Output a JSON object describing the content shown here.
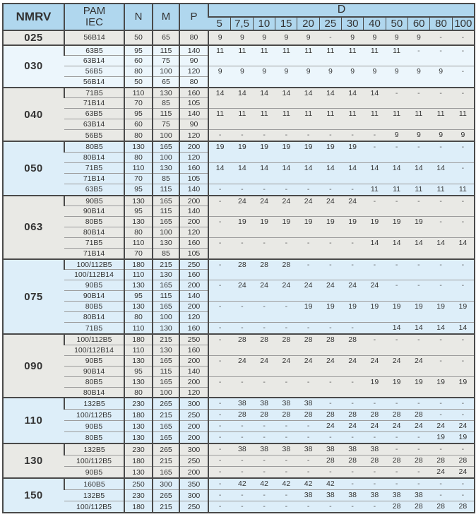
{
  "palette": {
    "header-bg": "#b0d7ee",
    "group-gray": "#e9e9e5",
    "group-blue": "#ddeef9",
    "group-bluelight": "#ecf6fc",
    "border-dark": "#4a4a4a",
    "border-light": "#9c9c9c",
    "text": "#333333"
  },
  "table": {
    "headers": {
      "nmrv": "NMRV",
      "pam_line1": "PAM",
      "pam_line2": "IEC",
      "n": "N",
      "m": "M",
      "p": "P",
      "d": "D"
    },
    "d_sizes": [
      "5",
      "7,5",
      "10",
      "15",
      "20",
      "25",
      "30",
      "40",
      "50",
      "60",
      "80",
      "100"
    ],
    "groups": [
      {
        "nmrv": "025",
        "tone": "gray",
        "rows": [
          {
            "pam": "56B14",
            "n": "50",
            "m": "65",
            "p": "80"
          }
        ],
        "dblocks": [
          {
            "span": 1,
            "values": [
              "9",
              "9",
              "9",
              "9",
              "9",
              "-",
              "9",
              "9",
              "9",
              "9",
              "-",
              "-"
            ]
          }
        ]
      },
      {
        "nmrv": "030",
        "tone": "bluelight",
        "rows": [
          {
            "pam": "63B5",
            "n": "95",
            "m": "115",
            "p": "140"
          },
          {
            "pam": "63B14",
            "n": "60",
            "m": "75",
            "p": "90"
          },
          {
            "pam": "56B5",
            "n": "80",
            "m": "100",
            "p": "120"
          },
          {
            "pam": "56B14",
            "n": "50",
            "m": "65",
            "p": "80"
          }
        ],
        "dblocks": [
          {
            "span": 2,
            "values": [
              "11",
              "11",
              "11",
              "11",
              "11",
              "11",
              "11",
              "11",
              "11",
              "-",
              "-",
              "-"
            ]
          },
          {
            "span": 2,
            "values": [
              "9",
              "9",
              "9",
              "9",
              "9",
              "9",
              "9",
              "9",
              "9",
              "9",
              "9",
              "-"
            ]
          }
        ]
      },
      {
        "nmrv": "040",
        "tone": "gray",
        "rows": [
          {
            "pam": "71B5",
            "n": "110",
            "m": "130",
            "p": "160"
          },
          {
            "pam": "71B14",
            "n": "70",
            "m": "85",
            "p": "105"
          },
          {
            "pam": "63B5",
            "n": "95",
            "m": "115",
            "p": "140"
          },
          {
            "pam": "63B14",
            "n": "60",
            "m": "75",
            "p": "90"
          },
          {
            "pam": "56B5",
            "n": "80",
            "m": "100",
            "p": "120"
          }
        ],
        "dblocks": [
          {
            "span": 2,
            "values": [
              "14",
              "14",
              "14",
              "14",
              "14",
              "14",
              "14",
              "14",
              "-",
              "-",
              "-",
              "-"
            ]
          },
          {
            "span": 2,
            "values": [
              "11",
              "11",
              "11",
              "11",
              "11",
              "11",
              "11",
              "11",
              "11",
              "11",
              "11",
              "11"
            ]
          },
          {
            "span": 1,
            "values": [
              "-",
              "-",
              "-",
              "-",
              "-",
              "-",
              "-",
              "-",
              "9",
              "9",
              "9",
              "9"
            ]
          }
        ]
      },
      {
        "nmrv": "050",
        "tone": "blue",
        "rows": [
          {
            "pam": "80B5",
            "n": "130",
            "m": "165",
            "p": "200"
          },
          {
            "pam": "80B14",
            "n": "80",
            "m": "100",
            "p": "120"
          },
          {
            "pam": "71B5",
            "n": "110",
            "m": "130",
            "p": "160"
          },
          {
            "pam": "71B14",
            "n": "70",
            "m": "85",
            "p": "105"
          },
          {
            "pam": "63B5",
            "n": "95",
            "m": "115",
            "p": "140"
          }
        ],
        "dblocks": [
          {
            "span": 2,
            "values": [
              "19",
              "19",
              "19",
              "19",
              "19",
              "19",
              "19",
              "-",
              "-",
              "-",
              "-",
              "-"
            ]
          },
          {
            "span": 2,
            "values": [
              "14",
              "14",
              "14",
              "14",
              "14",
              "14",
              "14",
              "14",
              "14",
              "14",
              "14",
              "-"
            ]
          },
          {
            "span": 1,
            "values": [
              "-",
              "-",
              "-",
              "-",
              "-",
              "-",
              "-",
              "11",
              "11",
              "11",
              "11",
              "11"
            ]
          }
        ]
      },
      {
        "nmrv": "063",
        "tone": "gray",
        "rows": [
          {
            "pam": "90B5",
            "n": "130",
            "m": "165",
            "p": "200"
          },
          {
            "pam": "90B14",
            "n": "95",
            "m": "115",
            "p": "140"
          },
          {
            "pam": "80B5",
            "n": "130",
            "m": "165",
            "p": "200"
          },
          {
            "pam": "80B14",
            "n": "80",
            "m": "100",
            "p": "120"
          },
          {
            "pam": "71B5",
            "n": "110",
            "m": "130",
            "p": "160"
          },
          {
            "pam": "71B14",
            "n": "70",
            "m": "85",
            "p": "105"
          }
        ],
        "dblocks": [
          {
            "span": 2,
            "values": [
              "-",
              "24",
              "24",
              "24",
              "24",
              "24",
              "24",
              "-",
              "-",
              "-",
              "-",
              "-"
            ]
          },
          {
            "span": 2,
            "values": [
              "-",
              "19",
              "19",
              "19",
              "19",
              "19",
              "19",
              "19",
              "19",
              "19",
              "-",
              "-"
            ]
          },
          {
            "span": 2,
            "values": [
              "-",
              "-",
              "-",
              "-",
              "-",
              "-",
              "-",
              "14",
              "14",
              "14",
              "14",
              "14"
            ]
          }
        ]
      },
      {
        "nmrv": "075",
        "tone": "blue",
        "rows": [
          {
            "pam": "100/112B5",
            "n": "180",
            "m": "215",
            "p": "250"
          },
          {
            "pam": "100/112B14",
            "n": "110",
            "m": "130",
            "p": "160"
          },
          {
            "pam": "90B5",
            "n": "130",
            "m": "165",
            "p": "200"
          },
          {
            "pam": "90B14",
            "n": "95",
            "m": "115",
            "p": "140"
          },
          {
            "pam": "80B5",
            "n": "130",
            "m": "165",
            "p": "200"
          },
          {
            "pam": "80B14",
            "n": "80",
            "m": "100",
            "p": "120"
          },
          {
            "pam": "71B5",
            "n": "110",
            "m": "130",
            "p": "160"
          }
        ],
        "dblocks": [
          {
            "span": 2,
            "values": [
              "-",
              "28",
              "28",
              "28",
              "-",
              "-",
              "-",
              "-",
              "-",
              "-",
              "-",
              "-"
            ]
          },
          {
            "span": 2,
            "values": [
              "-",
              "24",
              "24",
              "24",
              "24",
              "24",
              "24",
              "24",
              "-",
              "-",
              "-",
              "-"
            ]
          },
          {
            "span": 2,
            "values": [
              "-",
              "-",
              "-",
              "-",
              "19",
              "19",
              "19",
              "19",
              "19",
              "19",
              "19",
              "19"
            ]
          },
          {
            "span": 1,
            "values": [
              "-",
              "-",
              "-",
              "-",
              "-",
              "-",
              "-",
              "",
              "14",
              "14",
              "14",
              "14"
            ]
          }
        ]
      },
      {
        "nmrv": "090",
        "tone": "gray",
        "rows": [
          {
            "pam": "100/112B5",
            "n": "180",
            "m": "215",
            "p": "250"
          },
          {
            "pam": "100/112B14",
            "n": "110",
            "m": "130",
            "p": "160"
          },
          {
            "pam": "90B5",
            "n": "130",
            "m": "165",
            "p": "200"
          },
          {
            "pam": "90B14",
            "n": "95",
            "m": "115",
            "p": "140"
          },
          {
            "pam": "80B5",
            "n": "130",
            "m": "165",
            "p": "200"
          },
          {
            "pam": "80B14",
            "n": "80",
            "m": "100",
            "p": "120"
          }
        ],
        "dblocks": [
          {
            "span": 2,
            "values": [
              "-",
              "28",
              "28",
              "28",
              "28",
              "28",
              "28",
              "-",
              "-",
              "-",
              "-",
              "-"
            ]
          },
          {
            "span": 2,
            "values": [
              "-",
              "24",
              "24",
              "24",
              "24",
              "24",
              "24",
              "24",
              "24",
              "24",
              "-",
              "-"
            ]
          },
          {
            "span": 2,
            "values": [
              "-",
              "-",
              "-",
              "-",
              "-",
              "-",
              "-",
              "19",
              "19",
              "19",
              "19",
              "19"
            ]
          }
        ]
      },
      {
        "nmrv": "110",
        "tone": "blue",
        "rows": [
          {
            "pam": "132B5",
            "n": "230",
            "m": "265",
            "p": "300"
          },
          {
            "pam": "100/112B5",
            "n": "180",
            "m": "215",
            "p": "250"
          },
          {
            "pam": "90B5",
            "n": "130",
            "m": "165",
            "p": "200"
          },
          {
            "pam": "80B5",
            "n": "130",
            "m": "165",
            "p": "200"
          }
        ],
        "dblocks": [
          {
            "span": 1,
            "values": [
              "-",
              "38",
              "38",
              "38",
              "38",
              "-",
              "-",
              "-",
              "-",
              "-",
              "-",
              "-"
            ]
          },
          {
            "span": 1,
            "values": [
              "-",
              "28",
              "28",
              "28",
              "28",
              "28",
              "28",
              "28",
              "28",
              "28",
              "-",
              "-"
            ]
          },
          {
            "span": 1,
            "values": [
              "-",
              "-",
              "-",
              "-",
              "-",
              "24",
              "24",
              "24",
              "24",
              "24",
              "24",
              "24"
            ]
          },
          {
            "span": 1,
            "values": [
              "-",
              "-",
              "-",
              "-",
              "-",
              "-",
              "-",
              "-",
              "-",
              "-",
              "19",
              "19"
            ]
          }
        ]
      },
      {
        "nmrv": "130",
        "tone": "gray",
        "rows": [
          {
            "pam": "132B5",
            "n": "230",
            "m": "265",
            "p": "300"
          },
          {
            "pam": "100/112B5",
            "n": "180",
            "m": "215",
            "p": "250"
          },
          {
            "pam": "90B5",
            "n": "130",
            "m": "165",
            "p": "200"
          }
        ],
        "dblocks": [
          {
            "span": 1,
            "values": [
              "-",
              "38",
              "38",
              "38",
              "38",
              "38",
              "38",
              "38",
              "-",
              "-",
              "-",
              "-"
            ]
          },
          {
            "span": 1,
            "values": [
              "-",
              "-",
              "-",
              "-",
              "-",
              "28",
              "28",
              "28",
              "28",
              "28",
              "28",
              "28"
            ]
          },
          {
            "span": 1,
            "values": [
              "-",
              "-",
              "-",
              "-",
              "-",
              "-",
              "-",
              "-",
              "-",
              "-",
              "24",
              "24"
            ]
          }
        ]
      },
      {
        "nmrv": "150",
        "tone": "blue",
        "rows": [
          {
            "pam": "160B5",
            "n": "250",
            "m": "300",
            "p": "350"
          },
          {
            "pam": "132B5",
            "n": "230",
            "m": "265",
            "p": "300"
          },
          {
            "pam": "100/112B5",
            "n": "180",
            "m": "215",
            "p": "250"
          }
        ],
        "dblocks": [
          {
            "span": 1,
            "values": [
              "-",
              "42",
              "42",
              "42",
              "42",
              "42",
              "-",
              "-",
              "-",
              "-",
              "-",
              "-"
            ]
          },
          {
            "span": 1,
            "values": [
              "-",
              "-",
              "-",
              "-",
              "38",
              "38",
              "38",
              "38",
              "38",
              "38",
              "-",
              "-"
            ]
          },
          {
            "span": 1,
            "values": [
              "-",
              "-",
              "-",
              "-",
              "-",
              "-",
              "-",
              "-",
              "28",
              "28",
              "28",
              "28"
            ]
          }
        ]
      }
    ]
  }
}
